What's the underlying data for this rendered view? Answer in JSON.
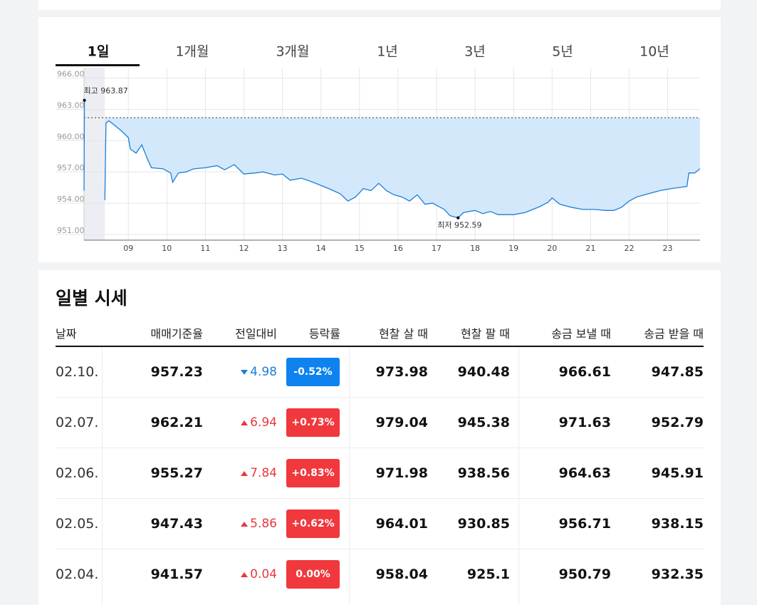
{
  "tabs": {
    "items": [
      "1일",
      "1개월",
      "3개월",
      "1년",
      "3년",
      "5년",
      "10년"
    ],
    "active": 0
  },
  "chart_data": {
    "type": "line",
    "xlim": [
      7.85,
      23.84
    ],
    "ylim": [
      950.45,
      967.0
    ],
    "yticks": [
      {
        "value": 951,
        "label": "951.00"
      },
      {
        "value": 954,
        "label": "954.00"
      },
      {
        "value": 957,
        "label": "957.00"
      },
      {
        "value": 960,
        "label": "960.00"
      },
      {
        "value": 963,
        "label": "963.00"
      },
      {
        "value": 966,
        "label": "966.00"
      }
    ],
    "xticks": [
      {
        "value": 9,
        "label": "09"
      },
      10,
      11,
      12,
      13,
      14,
      15,
      16,
      17,
      18,
      19,
      20,
      21,
      22,
      23
    ],
    "grid": true,
    "reference_line": 962.2,
    "premarket_band": [
      7.85,
      8.39
    ],
    "area_color": "#d4e8fc",
    "series": [
      {
        "color": "#1a7fd8",
        "x": [
          7.85,
          7.86,
          null,
          8.39,
          8.42,
          8.5,
          8.8,
          9.0,
          9.05,
          9.2,
          9.35,
          9.5,
          9.6,
          9.9,
          10.1,
          10.15,
          10.3,
          10.5,
          10.7,
          11.0,
          11.3,
          11.5,
          11.75,
          12.0,
          12.3,
          12.5,
          12.8,
          13.0,
          13.2,
          13.5,
          13.8,
          14.0,
          14.2,
          14.5,
          14.7,
          14.9,
          15.1,
          15.3,
          15.5,
          15.7,
          15.9,
          16.1,
          16.3,
          16.5,
          16.7,
          16.9,
          17.0,
          17.2,
          17.35,
          17.56,
          17.7,
          18.0,
          18.2,
          18.4,
          18.6,
          18.8,
          19.0,
          19.3,
          19.5,
          19.7,
          19.9,
          20.0,
          20.2,
          20.5,
          20.8,
          21.1,
          21.4,
          21.6,
          21.8,
          22.0,
          22.2,
          22.5,
          22.8,
          23.1,
          23.3,
          23.5,
          23.55,
          23.7,
          23.84
        ],
        "values": [
          955.2,
          963.87,
          null,
          954.3,
          961.7,
          961.9,
          961.0,
          960.3,
          959.2,
          958.8,
          959.6,
          958.2,
          957.4,
          957.3,
          956.9,
          956.0,
          956.9,
          957.0,
          957.3,
          957.4,
          957.6,
          957.2,
          957.7,
          956.8,
          956.9,
          957.0,
          956.7,
          956.8,
          956.2,
          956.4,
          956.0,
          955.7,
          955.4,
          954.9,
          954.2,
          954.6,
          955.4,
          955.2,
          955.9,
          955.2,
          954.8,
          954.6,
          954.2,
          954.8,
          953.9,
          954.0,
          953.8,
          953.4,
          952.8,
          952.59,
          953.1,
          953.3,
          953.0,
          953.2,
          952.9,
          952.9,
          952.9,
          953.1,
          953.4,
          953.7,
          954.1,
          954.5,
          953.9,
          953.6,
          953.4,
          953.4,
          953.3,
          953.3,
          953.6,
          954.2,
          954.6,
          954.9,
          955.2,
          955.4,
          955.5,
          955.6,
          956.9,
          956.9,
          957.3
        ]
      }
    ],
    "annotations": [
      {
        "label": "최고",
        "value": 963.87,
        "x": 7.86,
        "side": "above"
      },
      {
        "label": "최저",
        "value": 952.59,
        "x": 17.56,
        "side": "below"
      }
    ]
  },
  "table": {
    "title": "일별 시세",
    "headers": [
      "날짜",
      "매매기준율",
      "전일대비",
      "등락률",
      "현찰 살 때",
      "현찰 팔 때",
      "송금 보낼 때",
      "송금 받을 때"
    ],
    "rows": [
      {
        "date": "02.10.",
        "base": 957.23,
        "change": 4.98,
        "direction": "down",
        "rate": "-0.52%",
        "cash_buy": 973.98,
        "cash_sell": 940.48,
        "send": 966.61,
        "receive": 947.85
      },
      {
        "date": "02.07.",
        "base": 962.21,
        "change": 6.94,
        "direction": "up",
        "rate": "+0.73%",
        "cash_buy": 979.04,
        "cash_sell": 945.38,
        "send": 971.63,
        "receive": 952.79
      },
      {
        "date": "02.06.",
        "base": 955.27,
        "change": 7.84,
        "direction": "up",
        "rate": "+0.83%",
        "cash_buy": 971.98,
        "cash_sell": 938.56,
        "send": 964.63,
        "receive": 945.91
      },
      {
        "date": "02.05.",
        "base": 947.43,
        "change": 5.86,
        "direction": "up",
        "rate": "+0.62%",
        "cash_buy": 964.01,
        "cash_sell": 930.85,
        "send": 956.71,
        "receive": 938.15
      },
      {
        "date": "02.04.",
        "base": 941.57,
        "change": 0.04,
        "direction": "up",
        "rate": "0.00%",
        "cash_buy": 958.04,
        "cash_sell": 925.1,
        "send": 950.79,
        "receive": 932.35
      }
    ]
  }
}
